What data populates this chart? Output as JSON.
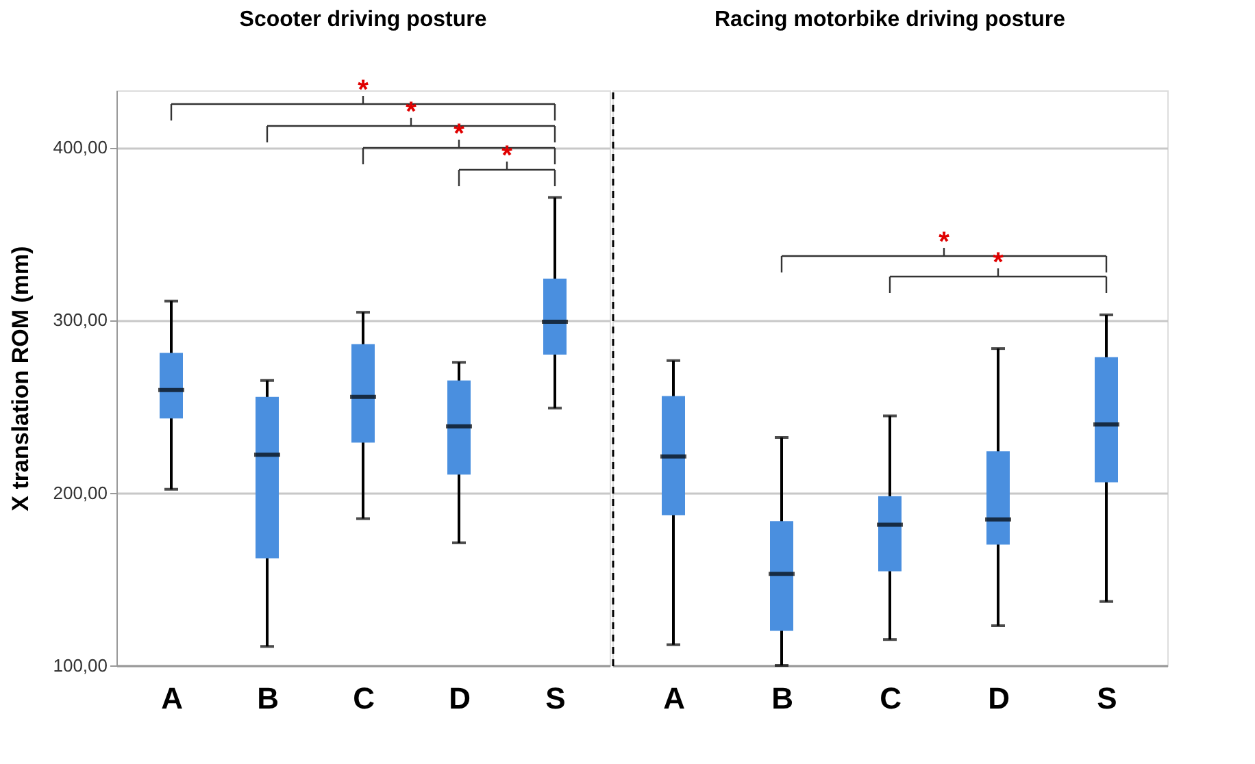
{
  "chart_data": [
    {
      "type": "box",
      "title": "Scooter driving posture",
      "ylabel": "X translation ROM (mm)",
      "categories": [
        "A",
        "B",
        "C",
        "D",
        "S"
      ],
      "color": "#4a8fdf",
      "boxes": [
        {
          "low": 202,
          "q1": 243,
          "median": 259.5,
          "q3": 281,
          "high": 311
        },
        {
          "low": 111,
          "q1": 162,
          "median": 222,
          "q3": 255.5,
          "high": 265
        },
        {
          "low": 185,
          "q1": 229,
          "median": 255.5,
          "q3": 286,
          "high": 304.5
        },
        {
          "low": 171,
          "q1": 210.5,
          "median": 238.5,
          "q3": 265,
          "high": 275.5
        },
        {
          "low": 249,
          "q1": 280,
          "median": 299,
          "q3": 324,
          "high": 371
        }
      ],
      "ylim": [
        100,
        433
      ],
      "yticks": [
        {
          "value": 100,
          "label": "100,00"
        },
        {
          "value": 200,
          "label": "200,00"
        },
        {
          "value": 300,
          "label": "300,00"
        },
        {
          "value": 400,
          "label": "400,00"
        }
      ],
      "grid": "y",
      "annotations": [
        "*",
        "*",
        "*",
        "*"
      ]
    },
    {
      "type": "box",
      "title": "Racing motorbike driving posture",
      "categories": [
        "A",
        "B",
        "C",
        "D",
        "S"
      ],
      "color": "#4a8fdf",
      "boxes": [
        {
          "low": 112,
          "q1": 187,
          "median": 221,
          "q3": 256,
          "high": 276.5
        },
        {
          "low": 100,
          "q1": 120,
          "median": 153,
          "q3": 183.5,
          "high": 232
        },
        {
          "low": 115,
          "q1": 154.5,
          "median": 181.5,
          "q3": 198,
          "high": 244.5
        },
        {
          "low": 123,
          "q1": 170,
          "median": 184.5,
          "q3": 224,
          "high": 283.5
        },
        {
          "low": 137,
          "q1": 206,
          "median": 239.5,
          "q3": 278.5,
          "high": 303
        }
      ],
      "ylim": [
        100,
        433
      ],
      "yticks": [
        100,
        200,
        300,
        400
      ],
      "grid": "y",
      "tick_labels": "x",
      "annotations": [
        "*",
        "*"
      ]
    }
  ]
}
